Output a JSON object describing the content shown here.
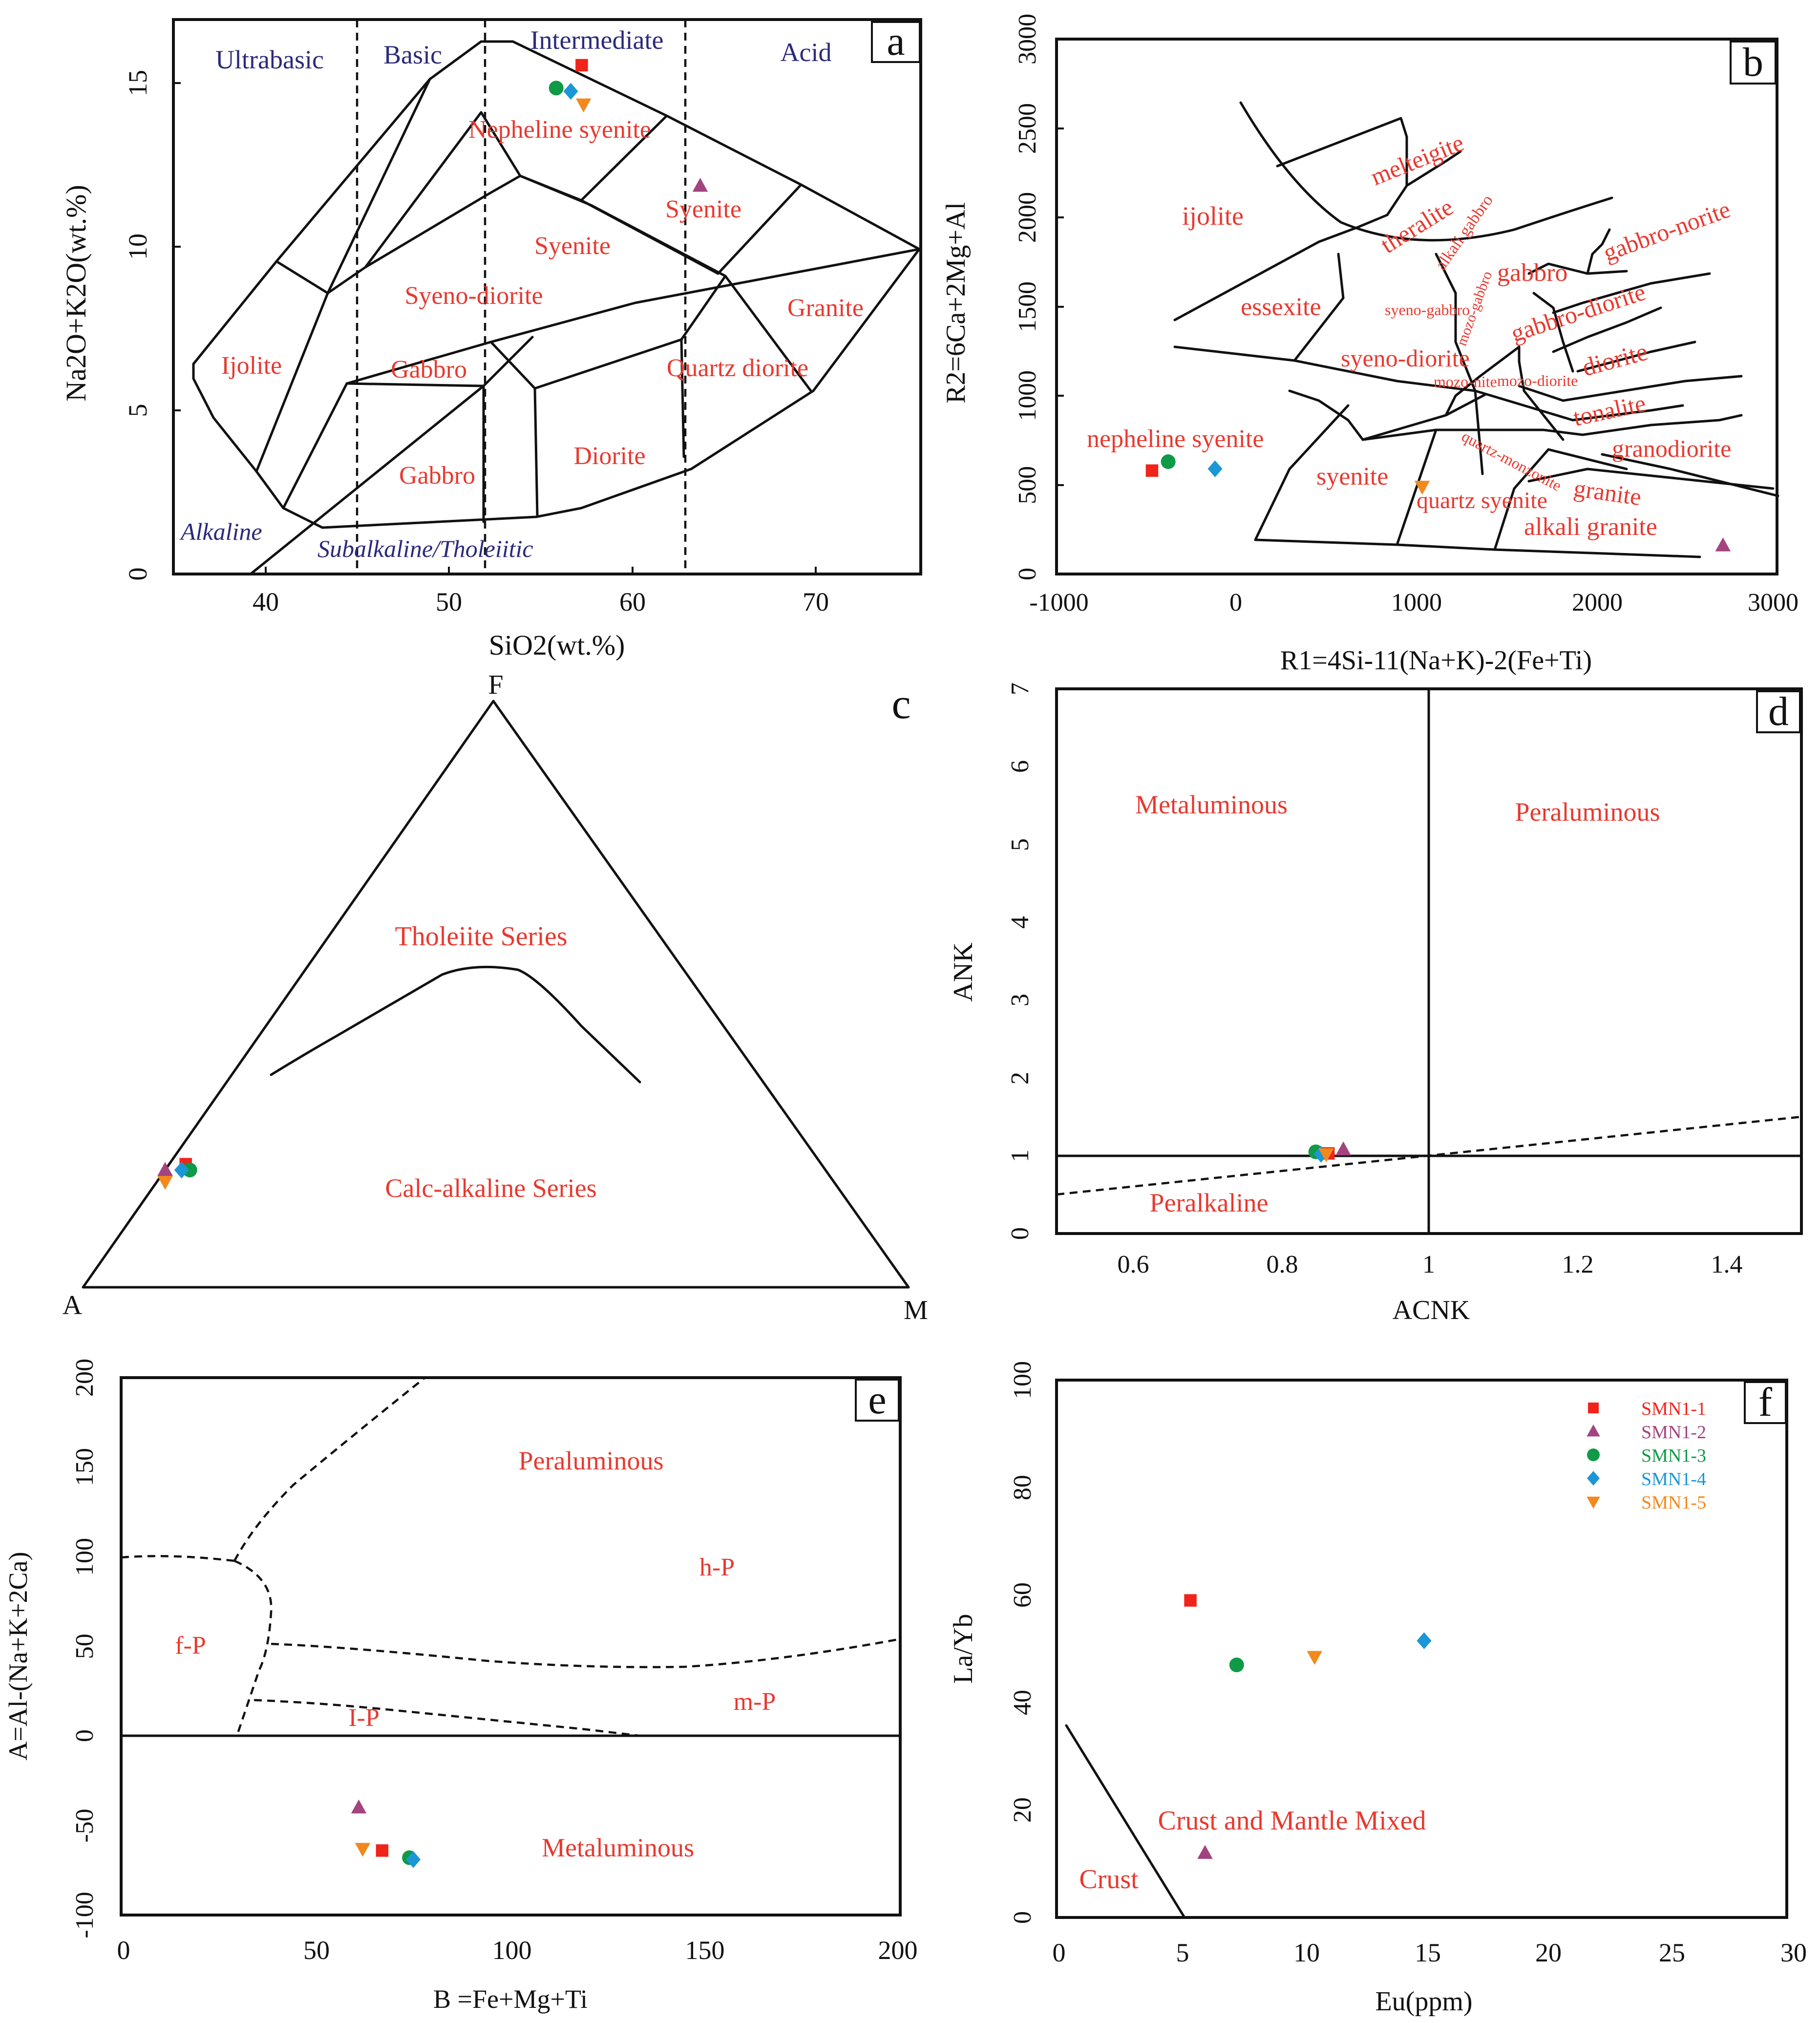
{
  "colors": {
    "SMN1-1": "#f0241b",
    "SMN1-2": "#a3437f",
    "SMN1-3": "#0e9a46",
    "SMN1-4": "#1b96d6",
    "SMN1-5": "#f2891d",
    "field_label": "#e8392f",
    "series_label": "#2b2a7a"
  },
  "legend": [
    "SMN1-1",
    "SMN1-2",
    "SMN1-3",
    "SMN1-4",
    "SMN1-5"
  ],
  "chart_data": [
    {
      "panel": "a",
      "type": "scatter",
      "title": "",
      "xlabel": "SiO2(wt.%)",
      "ylabel": "Na2O+K2O(wt.%)",
      "xlim": [
        35,
        76
      ],
      "ylim": [
        0,
        17
      ],
      "xticks": [
        40,
        50,
        60,
        70
      ],
      "yticks": [
        0,
        5,
        10,
        15
      ],
      "divisions": [
        {
          "x": 45,
          "label": "Ultrabasic"
        },
        {
          "x": 52,
          "label": "Basic"
        },
        {
          "x": 63,
          "label": "Intermediate"
        },
        {
          "x": 76,
          "label": "Acid"
        }
      ],
      "fields": [
        "Ijolite",
        "Gabbro",
        "Syeno-diorite",
        "Syenite",
        "Nepheline syenite",
        "Syenite",
        "Granite",
        "Quartz diorite",
        "Diorite",
        "Gabbro"
      ],
      "series_labels": [
        "Alkaline",
        "Subalkaline/Tholeiitic"
      ],
      "points": [
        {
          "sample": "SMN1-1",
          "x": 57.4,
          "y": 15.6
        },
        {
          "sample": "SMN1-2",
          "x": 63.9,
          "y": 11.9
        },
        {
          "sample": "SMN1-3",
          "x": 56.0,
          "y": 14.9
        },
        {
          "sample": "SMN1-4",
          "x": 56.8,
          "y": 14.8
        },
        {
          "sample": "SMN1-5",
          "x": 57.5,
          "y": 14.4
        }
      ]
    },
    {
      "panel": "b",
      "type": "scatter",
      "xlabel": "R1=4Si-11(Na+K)-2(Fe+Ti)",
      "ylabel": "R2=6Ca+2Mg+Al",
      "xlim": [
        -1000,
        3000
      ],
      "ylim": [
        0,
        3000
      ],
      "xticks": [
        -1000,
        0,
        1000,
        2000,
        3000
      ],
      "yticks": [
        0,
        500,
        1000,
        1500,
        2000,
        2500,
        3000
      ],
      "fields": [
        "melteigite",
        "theralite",
        "alkali gabbro",
        "ijolite",
        "gabbro",
        "gabbro-norite",
        "essexite",
        "syeno-gabbro",
        "mozo-gabbro",
        "gabbro-diorite",
        "diorite",
        "syeno-diorite",
        "mozo-nite",
        "mozo-diorite",
        "tonalite",
        "nepheline syenite",
        "quartz-monzonite",
        "granodiorite",
        "syenite",
        "quartz syenite",
        "granite",
        "alkali granite"
      ],
      "points": [
        {
          "sample": "SMN1-1",
          "x": -470,
          "y": 580
        },
        {
          "sample": "SMN1-2",
          "x": 2700,
          "y": 160
        },
        {
          "sample": "SMN1-3",
          "x": -380,
          "y": 630
        },
        {
          "sample": "SMN1-4",
          "x": -120,
          "y": 590
        },
        {
          "sample": "SMN1-5",
          "x": 1030,
          "y": 490
        }
      ]
    },
    {
      "panel": "c",
      "type": "ternary",
      "vertices": [
        "A",
        "F",
        "M"
      ],
      "fields": [
        "Tholeiite Series",
        "Calc-alkaline Series"
      ],
      "points_note": "plotted in A-F-M ternary (A,F,M fractions)",
      "points": [
        {
          "sample": "SMN1-1",
          "A": 0.77,
          "F": 0.21,
          "M": 0.02
        },
        {
          "sample": "SMN1-2",
          "A": 0.8,
          "F": 0.2,
          "M": 0.0
        },
        {
          "sample": "SMN1-3",
          "A": 0.77,
          "F": 0.2,
          "M": 0.03
        },
        {
          "sample": "SMN1-4",
          "A": 0.78,
          "F": 0.2,
          "M": 0.02
        },
        {
          "sample": "SMN1-5",
          "A": 0.81,
          "F": 0.18,
          "M": 0.01
        }
      ]
    },
    {
      "panel": "d",
      "type": "scatter",
      "xlabel": "ACNK",
      "ylabel": "ANK",
      "xlim": [
        0.5,
        1.5
      ],
      "ylim": [
        0,
        7
      ],
      "xticks": [
        0.6,
        0.8,
        1.0,
        1.2,
        1.4
      ],
      "yticks": [
        0,
        1,
        2,
        3,
        4,
        5,
        6,
        7
      ],
      "fields": [
        "Metaluminous",
        "Peraluminous",
        "Peralkaline"
      ],
      "points": [
        {
          "sample": "SMN1-1",
          "x": 0.865,
          "y": 1.03
        },
        {
          "sample": "SMN1-2",
          "x": 0.885,
          "y": 1.08
        },
        {
          "sample": "SMN1-3",
          "x": 0.848,
          "y": 1.05
        },
        {
          "sample": "SMN1-4",
          "x": 0.855,
          "y": 1.02
        },
        {
          "sample": "SMN1-5",
          "x": 0.862,
          "y": 1.02
        }
      ]
    },
    {
      "panel": "e",
      "type": "scatter",
      "xlabel": "B =Fe+Mg+Ti",
      "ylabel": "A=Al-(Na+K+2Ca)",
      "xlim": [
        0,
        200
      ],
      "ylim": [
        -100,
        200
      ],
      "xticks": [
        0,
        50,
        100,
        150,
        200
      ],
      "yticks": [
        -100,
        -50,
        0,
        50,
        100,
        150,
        200
      ],
      "fields": [
        "Peraluminous",
        "h-P",
        "f-P",
        "m-P",
        "I-P",
        "Metaluminous"
      ],
      "points": [
        {
          "sample": "SMN1-1",
          "x": 67,
          "y": -64
        },
        {
          "sample": "SMN1-2",
          "x": 61,
          "y": -40
        },
        {
          "sample": "SMN1-3",
          "x": 74,
          "y": -68
        },
        {
          "sample": "SMN1-4",
          "x": 75,
          "y": -69
        },
        {
          "sample": "SMN1-5",
          "x": 62,
          "y": -63
        }
      ]
    },
    {
      "panel": "f",
      "type": "scatter",
      "xlabel": "Eu(ppm)",
      "ylabel": "La/Yb",
      "xlim": [
        0,
        30
      ],
      "ylim": [
        0,
        100
      ],
      "xticks": [
        0,
        5,
        10,
        15,
        20,
        25,
        30
      ],
      "yticks": [
        0,
        20,
        40,
        60,
        80,
        100
      ],
      "fields": [
        "Crust and Mantle Mixed",
        "Crust"
      ],
      "points": [
        {
          "sample": "SMN1-1",
          "x": 5.5,
          "y": 59
        },
        {
          "sample": "SMN1-2",
          "x": 6.1,
          "y": 12
        },
        {
          "sample": "SMN1-3",
          "x": 7.4,
          "y": 47
        },
        {
          "sample": "SMN1-4",
          "x": 15.1,
          "y": 51.5
        },
        {
          "sample": "SMN1-5",
          "x": 10.6,
          "y": 48.5
        }
      ]
    }
  ]
}
